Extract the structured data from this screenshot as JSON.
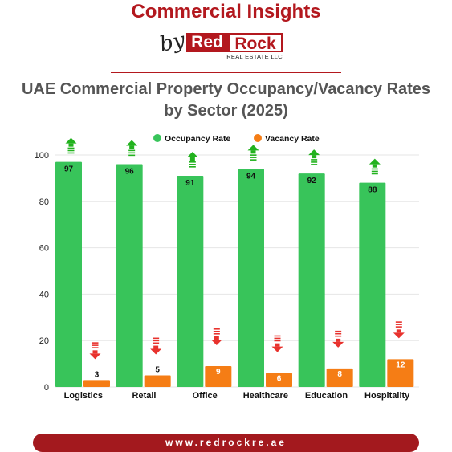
{
  "header": {
    "brand_title": "Commercial Insights",
    "by": "by",
    "logo_red_part": "Red",
    "logo_dark_part": "Rock",
    "logo_sub": "REAL ESTATE LLC"
  },
  "footer": {
    "url": "www.redrockre.ae"
  },
  "colors": {
    "occupancy": "#38c45a",
    "vacancy": "#f57d15",
    "up_arrow": "#22b21e",
    "down_arrow": "#e8322d",
    "brand": "#b3181e"
  },
  "chart_data": {
    "type": "bar",
    "title": "UAE Commercial Property Occupancy/Vacancy Rates by Sector (2025)",
    "categories": [
      "Logistics",
      "Retail",
      "Office",
      "Healthcare",
      "Education",
      "Hospitality"
    ],
    "series": [
      {
        "name": "Occupancy Rate",
        "values": [
          97,
          96,
          91,
          94,
          92,
          88
        ]
      },
      {
        "name": "Vacancy Rate",
        "values": [
          3,
          5,
          9,
          6,
          8,
          12
        ]
      }
    ],
    "yticks": [
      0,
      20,
      40,
      60,
      80,
      100
    ],
    "ylim": [
      0,
      100
    ],
    "grid": true,
    "legend": "top"
  }
}
